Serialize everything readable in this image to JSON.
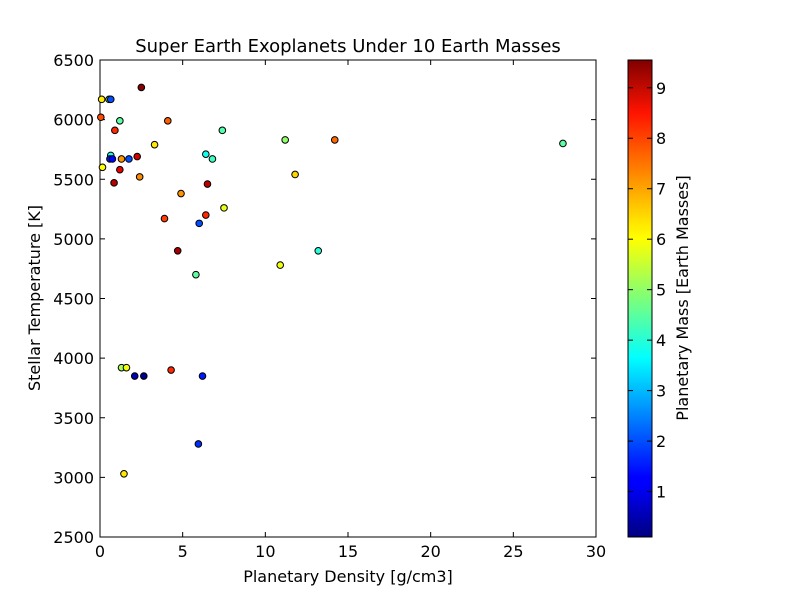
{
  "chart_data": {
    "type": "scatter",
    "title": "Super Earth Exoplanets Under 10 Earth Masses",
    "xlabel": "Planetary Density [g/cm3]",
    "ylabel": "Stellar Temperature [K]",
    "colorbar_label": "Planetary Mass [Earth Masses]",
    "xlim": [
      0,
      30
    ],
    "ylim": [
      2500,
      6500
    ],
    "clim": [
      0.1,
      9.55
    ],
    "colormap": "jet",
    "grid": false,
    "x_ticks": [
      0,
      5,
      10,
      15,
      20,
      25,
      30
    ],
    "y_ticks": [
      2500,
      3000,
      3500,
      4000,
      4500,
      5000,
      5500,
      6000,
      6500
    ],
    "colorbar_ticks": [
      1,
      2,
      3,
      4,
      5,
      6,
      7,
      8,
      9
    ],
    "points": [
      {
        "x": 0.1,
        "y": 6170,
        "mass": 6.2
      },
      {
        "x": 0.55,
        "y": 6170,
        "mass": 4.8
      },
      {
        "x": 0.65,
        "y": 6170,
        "mass": 2.0
      },
      {
        "x": 2.5,
        "y": 6270,
        "mass": 9.5
      },
      {
        "x": 0.05,
        "y": 6020,
        "mass": 7.7
      },
      {
        "x": 0.9,
        "y": 5910,
        "mass": 8.0
      },
      {
        "x": 1.2,
        "y": 5990,
        "mass": 4.5
      },
      {
        "x": 4.1,
        "y": 5990,
        "mass": 7.5
      },
      {
        "x": 7.4,
        "y": 5910,
        "mass": 4.4
      },
      {
        "x": 11.2,
        "y": 5830,
        "mass": 5.0
      },
      {
        "x": 14.2,
        "y": 5830,
        "mass": 7.4
      },
      {
        "x": 28.0,
        "y": 5800,
        "mass": 4.5
      },
      {
        "x": 3.3,
        "y": 5790,
        "mass": 6.2
      },
      {
        "x": 0.65,
        "y": 5700,
        "mass": 3.8
      },
      {
        "x": 0.6,
        "y": 5670,
        "mass": 1.5
      },
      {
        "x": 0.75,
        "y": 5670,
        "mass": 1.3
      },
      {
        "x": 1.3,
        "y": 5670,
        "mass": 7.0
      },
      {
        "x": 1.75,
        "y": 5670,
        "mass": 2.0
      },
      {
        "x": 2.25,
        "y": 5690,
        "mass": 8.8
      },
      {
        "x": 6.4,
        "y": 5710,
        "mass": 3.8
      },
      {
        "x": 6.8,
        "y": 5670,
        "mass": 4.2
      },
      {
        "x": 0.15,
        "y": 5600,
        "mass": 6.0
      },
      {
        "x": 1.2,
        "y": 5580,
        "mass": 8.6
      },
      {
        "x": 2.4,
        "y": 5520,
        "mass": 7.1
      },
      {
        "x": 0.85,
        "y": 5470,
        "mass": 9.0
      },
      {
        "x": 11.8,
        "y": 5540,
        "mass": 6.4
      },
      {
        "x": 6.5,
        "y": 5460,
        "mass": 9.0
      },
      {
        "x": 4.9,
        "y": 5380,
        "mass": 7.0
      },
      {
        "x": 7.5,
        "y": 5260,
        "mass": 5.8
      },
      {
        "x": 3.9,
        "y": 5170,
        "mass": 7.8
      },
      {
        "x": 6.4,
        "y": 5200,
        "mass": 8.0
      },
      {
        "x": 6.0,
        "y": 5130,
        "mass": 2.0
      },
      {
        "x": 4.7,
        "y": 4900,
        "mass": 9.2
      },
      {
        "x": 13.2,
        "y": 4900,
        "mass": 4.0
      },
      {
        "x": 10.9,
        "y": 4780,
        "mass": 5.9
      },
      {
        "x": 5.8,
        "y": 4700,
        "mass": 4.5
      },
      {
        "x": 1.3,
        "y": 3920,
        "mass": 5.2
      },
      {
        "x": 1.6,
        "y": 3920,
        "mass": 5.9
      },
      {
        "x": 4.3,
        "y": 3900,
        "mass": 8.0
      },
      {
        "x": 2.1,
        "y": 3850,
        "mass": 0.6
      },
      {
        "x": 2.65,
        "y": 3850,
        "mass": 0.25
      },
      {
        "x": 6.2,
        "y": 3850,
        "mass": 1.5
      },
      {
        "x": 5.95,
        "y": 3280,
        "mass": 1.7
      },
      {
        "x": 1.45,
        "y": 3030,
        "mass": 6.2
      }
    ]
  }
}
